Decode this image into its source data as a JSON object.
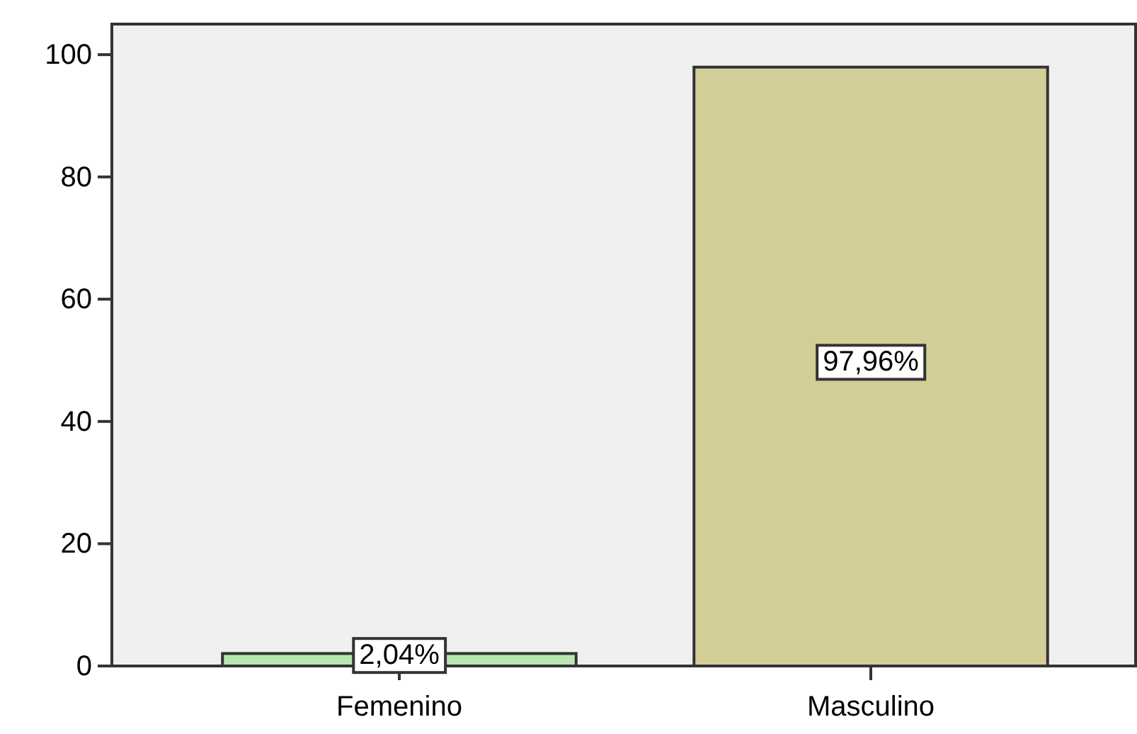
{
  "chart_data": {
    "type": "bar",
    "categories": [
      "Femenino",
      "Masculino"
    ],
    "colors": [
      "#b8e6b0",
      "#d3ce97"
    ],
    "values": [
      2.04,
      97.96
    ],
    "value_labels": [
      "2,04%",
      "97,96%"
    ],
    "ylim": [
      0,
      105
    ],
    "yticks": [
      0,
      20,
      40,
      60,
      80,
      100
    ],
    "grid": false
  }
}
